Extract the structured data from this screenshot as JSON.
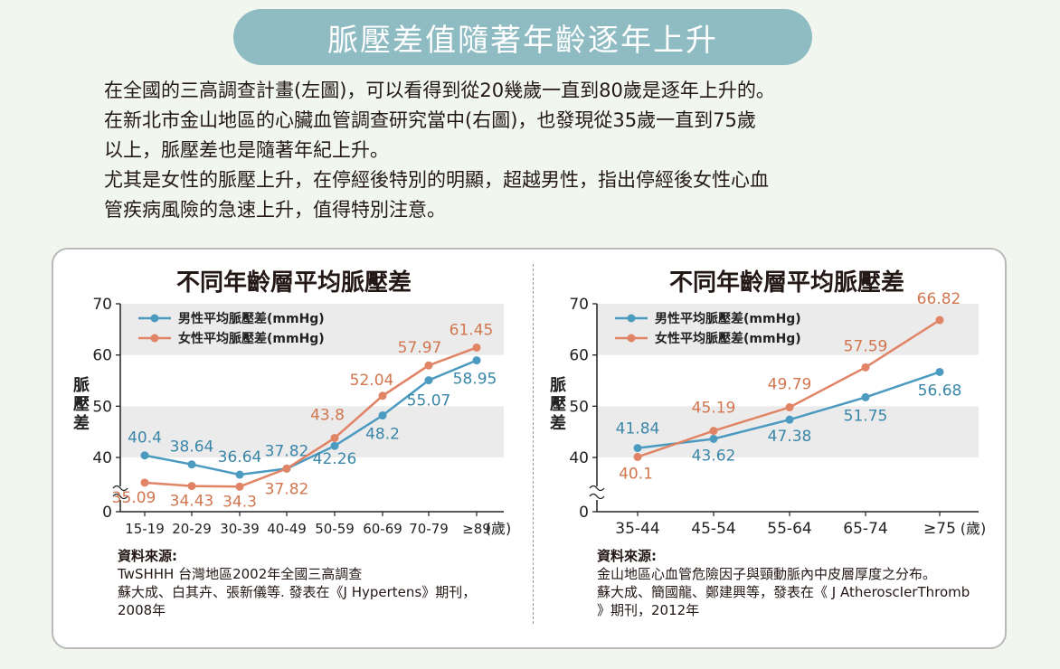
{
  "banner": {
    "title": "脈壓差值隨著年齡逐年上升"
  },
  "intro": {
    "lines": [
      "在全國的三高調查計畫(左圖)，可以看得到從20幾歲一直到80歲是逐年上升的。",
      "在新北市金山地區的心臟血管調查研究當中(右圖)，也發現從35歲一直到75歲",
      "以上，脈壓差也是隨著年紀上升。",
      "尤其是女性的脈壓上升，在停經後特別的明顯，超越男性，指出停經後女性心血",
      "管疾病風險的急速上升，值得特別注意。"
    ]
  },
  "colors": {
    "male": "#4b9ac0",
    "female": "#e08465",
    "male_label": "#3a86a8",
    "female_label": "#d1764f",
    "band": "#ebebeb",
    "banner": "#8fbcc3"
  },
  "chart_data": [
    {
      "type": "line",
      "title": "不同年齡層平均脈壓差",
      "ylabel": "脈壓差",
      "xunit": "(歲)",
      "categories": [
        "15-19",
        "20-29",
        "30-39",
        "40-49",
        "50-59",
        "60-69",
        "70-79",
        "≥89"
      ],
      "yticks": [
        "0",
        "40",
        "50",
        "60",
        "70"
      ],
      "ylim": [
        30,
        70
      ],
      "axis_break": true,
      "shaded_bands": [
        [
          40,
          50
        ],
        [
          60,
          70
        ]
      ],
      "series": [
        {
          "name": "男性平均脈壓差(mmHg)",
          "values": [
            40.4,
            38.64,
            36.64,
            37.82,
            42.26,
            48.2,
            55.07,
            58.95
          ],
          "labels": [
            "40.4",
            "38.64",
            "36.64",
            "37.82",
            "42.26",
            "48.2",
            "55.07",
            "58.95"
          ]
        },
        {
          "name": "女性平均脈壓差(mmHg)",
          "values": [
            35.09,
            34.43,
            34.3,
            37.82,
            43.8,
            52.04,
            57.97,
            61.45
          ],
          "labels": [
            "35.09",
            "34.43",
            "34.3",
            "37.82",
            "43.8",
            "52.04",
            "57.97",
            "61.45"
          ]
        }
      ],
      "legend": "top-left",
      "source": {
        "heading": "資料來源:",
        "lines": [
          "TwSHHH 台灣地區2002年全國三高調查",
          "蘇大成、白其卉、張新儀等. 發表在《J Hypertens》期刊，",
          "2008年"
        ]
      }
    },
    {
      "type": "line",
      "title": "不同年齡層平均脈壓差",
      "ylabel": "脈壓差",
      "xunit": "(歲)",
      "categories": [
        "35-44",
        "45-54",
        "55-64",
        "65-74",
        "≥75"
      ],
      "yticks": [
        "0",
        "40",
        "50",
        "60",
        "70"
      ],
      "ylim": [
        30,
        70
      ],
      "axis_break": true,
      "shaded_bands": [
        [
          40,
          50
        ],
        [
          60,
          70
        ]
      ],
      "series": [
        {
          "name": "男性平均脈壓差(mmHg)",
          "values": [
            41.84,
            43.62,
            47.38,
            51.75,
            56.68
          ],
          "labels": [
            "41.84",
            "43.62",
            "47.38",
            "51.75",
            "56.68"
          ]
        },
        {
          "name": "女性平均脈壓差(mmHg)",
          "values": [
            40.1,
            45.19,
            49.79,
            57.59,
            66.82
          ],
          "labels": [
            "40.1",
            "45.19",
            "49.79",
            "57.59",
            "66.82"
          ]
        }
      ],
      "legend": "top-left",
      "source": {
        "heading": "資料來源:",
        "lines": [
          "金山地區心血管危險因子與頸動脈內中皮層厚度之分布。",
          "蘇大成、簡國龍、鄭建興等，發表在《 J AtheroscIerThromb",
          "》期刊，2012年"
        ]
      }
    }
  ]
}
